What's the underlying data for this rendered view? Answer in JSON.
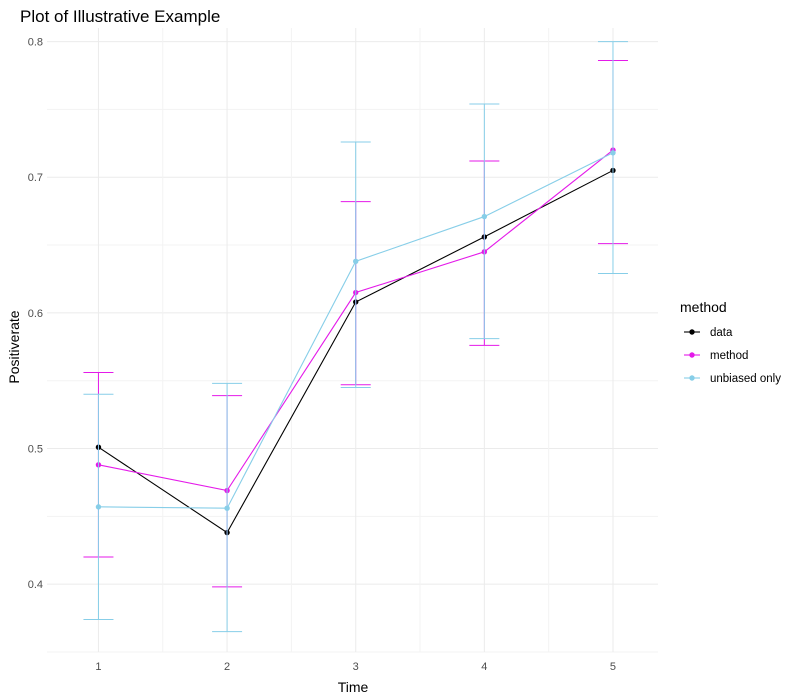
{
  "chart_data": {
    "type": "line",
    "title": "Plot of Illustrative Example",
    "xlabel": "Time",
    "ylabel": "Positiverate",
    "x": [
      1,
      2,
      3,
      4,
      5
    ],
    "xlim": [
      0.6,
      5.35
    ],
    "ylim": [
      0.35,
      0.81
    ],
    "x_ticks": [
      "1",
      "2",
      "3",
      "4",
      "5"
    ],
    "y_ticks": [
      "0.4",
      "0.5",
      "0.6",
      "0.7",
      "0.8"
    ],
    "grid": true,
    "legend": {
      "title": "method",
      "position": "right"
    },
    "series": [
      {
        "name": "data",
        "color": "#000000",
        "values": [
          0.501,
          0.438,
          0.608,
          0.656,
          0.705
        ]
      },
      {
        "name": "method",
        "color": "#e41ae9",
        "values": [
          0.488,
          0.469,
          0.615,
          0.645,
          0.72
        ],
        "error_lower": [
          0.42,
          0.398,
          0.547,
          0.576,
          0.651
        ],
        "error_upper": [
          0.556,
          0.539,
          0.682,
          0.712,
          0.786
        ]
      },
      {
        "name": "unbiased only",
        "color": "#87cee8",
        "values": [
          0.457,
          0.456,
          0.638,
          0.671,
          0.718
        ],
        "error_lower": [
          0.374,
          0.365,
          0.545,
          0.581,
          0.629
        ],
        "error_upper": [
          0.54,
          0.548,
          0.726,
          0.754,
          0.8
        ]
      }
    ]
  }
}
